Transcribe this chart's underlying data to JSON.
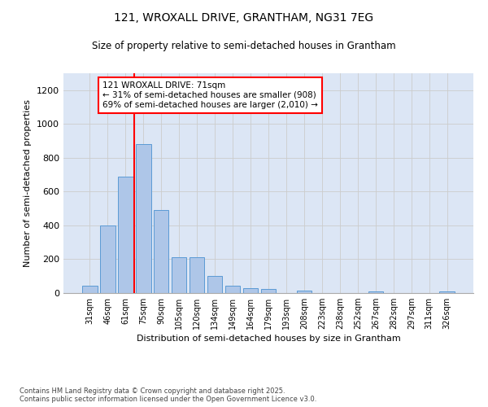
{
  "title_line1": "121, WROXALL DRIVE, GRANTHAM, NG31 7EG",
  "title_line2": "Size of property relative to semi-detached houses in Grantham",
  "xlabel": "Distribution of semi-detached houses by size in Grantham",
  "ylabel": "Number of semi-detached properties",
  "categories": [
    "31sqm",
    "46sqm",
    "61sqm",
    "75sqm",
    "90sqm",
    "105sqm",
    "120sqm",
    "134sqm",
    "149sqm",
    "164sqm",
    "179sqm",
    "193sqm",
    "208sqm",
    "223sqm",
    "238sqm",
    "252sqm",
    "267sqm",
    "282sqm",
    "297sqm",
    "311sqm",
    "326sqm"
  ],
  "values": [
    45,
    400,
    690,
    880,
    490,
    210,
    210,
    100,
    45,
    30,
    25,
    0,
    15,
    0,
    0,
    0,
    10,
    0,
    0,
    0,
    10
  ],
  "bar_color": "#aec6e8",
  "bar_edge_color": "#5b9bd5",
  "vline_x_index": 2.5,
  "annotation_title": "121 WROXALL DRIVE: 71sqm",
  "annotation_line2": "← 31% of semi-detached houses are smaller (908)",
  "annotation_line3": "69% of semi-detached houses are larger (2,010) →",
  "ylim": [
    0,
    1300
  ],
  "yticks": [
    0,
    200,
    400,
    600,
    800,
    1000,
    1200
  ],
  "grid_color": "#cccccc",
  "background_color": "#dce6f5",
  "footer_line1": "Contains HM Land Registry data © Crown copyright and database right 2025.",
  "footer_line2": "Contains public sector information licensed under the Open Government Licence v3.0."
}
